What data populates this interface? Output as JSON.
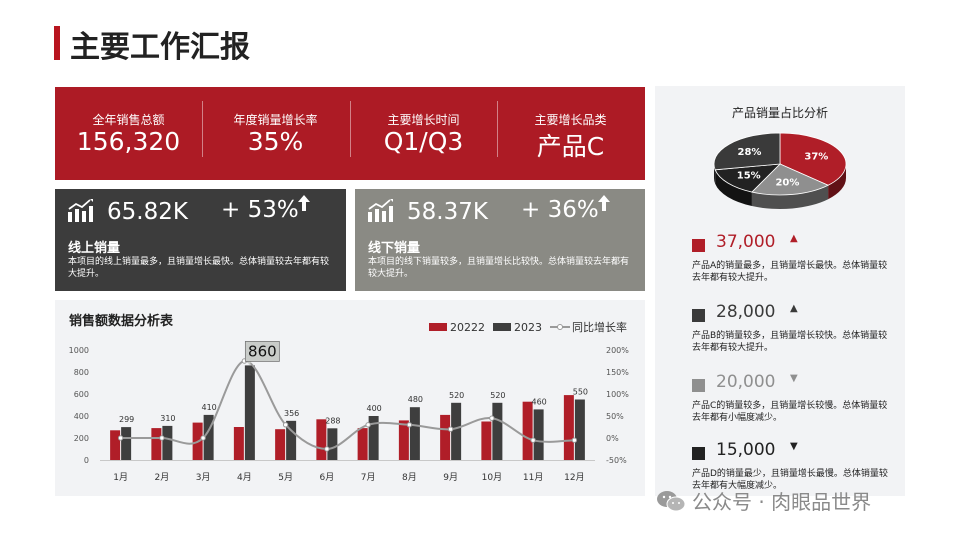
{
  "title": "主要工作汇报",
  "kpis": [
    {
      "label": "全年销售总额",
      "value": "156,320"
    },
    {
      "label": "年度销量增长率",
      "value": "35%"
    },
    {
      "label": "主要增长时间",
      "value": "Q1/Q3"
    },
    {
      "label": "主要增长品类",
      "value": "产品C"
    }
  ],
  "channels": {
    "online": {
      "amount": "65.82K",
      "growth": "+ 53%",
      "title": "线上销量",
      "desc": "本项目的线上销量最多，且销量增长最快。总体销量较去年都有较大提升。",
      "icon": "chart-growth-icon",
      "arrow": "arrow-up-icon"
    },
    "offline": {
      "amount": "58.37K",
      "growth": "+ 36%",
      "title": "线下销量",
      "desc": "本项目的线下销量较多，且销量增长比较快。总体销量较去年都有较大提升。",
      "icon": "chart-growth-icon",
      "arrow": "arrow-up-icon"
    }
  },
  "pie_title": "产品销量占比分析",
  "products": [
    {
      "value": "37,000",
      "trend": "▲",
      "desc": "产品A的销量最多，且销量增长最快。总体销量较去年都有较大提升。",
      "color": "#b01e28"
    },
    {
      "value": "28,000",
      "trend": "▲",
      "desc": "产品B的销量较多，且销量增长较快。总体销量较去年都有较大提升。",
      "color": "#3a3a3a"
    },
    {
      "value": "20,000",
      "trend": "▼",
      "desc": "产品C的销量较多，且销量增长较慢。总体销量较去年都有小幅度减少。",
      "color": "#8f8f8f"
    },
    {
      "value": "15,000",
      "trend": "▼",
      "desc": "产品D的销量最少，且销量增长最慢。总体销量较去年都有大幅度减少。",
      "color": "#222222"
    }
  ],
  "watermark": "公众号 · 肉眼品世界",
  "colors": {
    "accent": "#ad1b25",
    "dark": "#3c3c3c",
    "gray": "#8a8a84",
    "line": "#9a9a9a"
  },
  "chart_data": [
    {
      "type": "bar",
      "title": "销售额数据分析表",
      "categories": [
        "1月",
        "2月",
        "3月",
        "4月",
        "5月",
        "6月",
        "7月",
        "8月",
        "9月",
        "10月",
        "11月",
        "12月"
      ],
      "series": [
        {
          "name": "20222",
          "type": "bar",
          "axis": "left",
          "color": "#b01e28",
          "values": [
            270,
            290,
            340,
            300,
            280,
            370,
            290,
            360,
            410,
            350,
            530,
            590
          ]
        },
        {
          "name": "2023",
          "type": "bar",
          "axis": "left",
          "color": "#3e3e3e",
          "values": [
            299,
            310,
            410,
            860,
            356,
            288,
            400,
            480,
            520,
            520,
            460,
            550
          ]
        },
        {
          "name": "同比增长率",
          "type": "line",
          "axis": "right",
          "color": "#9a9a9a",
          "values": [
            0.0,
            0.0,
            0.0,
            1.75,
            0.3,
            -0.25,
            0.3,
            0.3,
            0.2,
            0.45,
            -0.05,
            -0.05
          ]
        }
      ],
      "data_labels": [
        "299",
        "310",
        "410",
        "860",
        "356",
        "288",
        "400",
        "480",
        "520",
        "520",
        "460",
        "550"
      ],
      "highlight_label": "860",
      "ylim": [
        0,
        1000
      ],
      "yticks": [
        "0",
        "200",
        "400",
        "600",
        "800",
        "1000"
      ],
      "y2lim": [
        -0.5,
        2.0
      ],
      "y2ticks": [
        "-50%",
        "0%",
        "50%",
        "100%",
        "150%",
        "200%"
      ],
      "legend_position": "top-right",
      "grid": false
    },
    {
      "type": "pie",
      "title": "产品销量占比分析",
      "slices": [
        {
          "label": "37%",
          "value": 37,
          "color": "#b01e28"
        },
        {
          "label": "20%",
          "value": 20,
          "color": "#8f8f8f"
        },
        {
          "label": "15%",
          "value": 15,
          "color": "#222222"
        },
        {
          "label": "28%",
          "value": 28,
          "color": "#3a3a3a"
        }
      ],
      "style": "3d"
    }
  ]
}
